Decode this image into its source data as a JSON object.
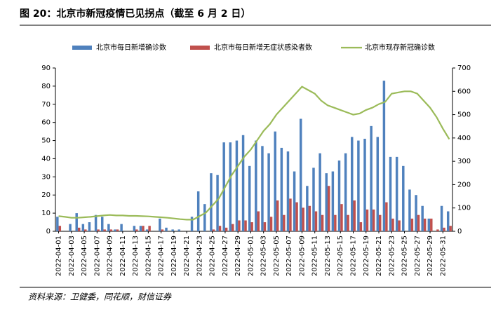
{
  "chart_data": {
    "type": "bar_line",
    "title": "图 20：北京市新冠疫情已见拐点（截至 6 月 2 日）",
    "source": "资料来源：卫健委，同花顺，财信证券",
    "categories": [
      "2022-04-01",
      null,
      "2022-04-03",
      null,
      "2022-04-05",
      null,
      "2022-04-07",
      null,
      "2022-04-09",
      null,
      "2022-04-11",
      null,
      "2022-04-13",
      null,
      "2022-04-15",
      null,
      "2022-04-17",
      null,
      "2022-04-19",
      null,
      "2022-04-21",
      null,
      "2022-04-23",
      null,
      "2022-04-25",
      null,
      "2022-04-27",
      null,
      "2022-04-29",
      null,
      "2022-05-01",
      null,
      "2022-05-03",
      null,
      "2022-05-05",
      null,
      "2022-05-07",
      null,
      "2022-05-09",
      null,
      "2022-05-11",
      null,
      "2022-05-13",
      null,
      "2022-05-15",
      null,
      "2022-05-17",
      null,
      "2022-05-19",
      null,
      "2022-05-21",
      null,
      "2022-05-23",
      null,
      "2022-05-25",
      null,
      "2022-05-27",
      null,
      "2022-05-29",
      null,
      "2022-05-31",
      null
    ],
    "series": [
      {
        "name": "北京市每日新增确诊数",
        "color": "#4f81bd",
        "kind": "bar",
        "values": [
          8,
          0,
          4,
          10,
          4,
          5,
          9,
          8,
          4,
          1,
          4,
          0,
          3,
          3,
          1,
          0,
          7,
          2,
          1,
          1,
          0,
          8,
          22,
          15,
          32,
          31,
          49,
          49,
          50,
          53,
          36,
          50,
          47,
          43,
          55,
          46,
          44,
          33,
          62,
          25,
          35,
          43,
          32,
          33,
          39,
          43,
          52,
          50,
          51,
          58,
          52,
          83,
          41,
          41,
          36,
          23,
          20,
          14,
          7,
          0,
          14,
          11
        ]
      },
      {
        "name": "北京市每日新增无症状感染者数",
        "color": "#c0504d",
        "kind": "bar",
        "values": [
          3,
          0,
          0,
          2,
          1,
          0,
          1,
          1,
          1,
          1,
          0,
          0,
          1,
          3,
          3,
          0,
          1,
          0,
          0,
          0,
          0,
          0,
          0,
          0,
          1,
          3,
          2,
          4,
          6,
          6,
          5,
          11,
          5,
          8,
          17,
          9,
          18,
          16,
          13,
          14,
          11,
          9,
          25,
          9,
          15,
          9,
          17,
          5,
          12,
          12,
          9,
          16,
          7,
          6,
          0,
          7,
          9,
          7,
          7,
          1,
          2,
          3
        ]
      },
      {
        "name": "北京市现存新冠确诊数",
        "color": "#9bbb59",
        "kind": "line",
        "axis": "y2",
        "values": [
          65,
          62,
          58,
          58,
          60,
          62,
          65,
          68,
          70,
          68,
          68,
          66,
          66,
          65,
          64,
          62,
          60,
          58,
          55,
          52,
          50,
          50,
          65,
          80,
          110,
          140,
          190,
          240,
          280,
          320,
          350,
          390,
          430,
          460,
          500,
          530,
          560,
          590,
          620,
          605,
          590,
          560,
          540,
          530,
          520,
          510,
          500,
          505,
          520,
          530,
          545,
          555,
          590,
          595,
          600,
          600,
          590,
          560,
          530,
          490,
          440,
          395
        ]
      }
    ],
    "ylim": [
      0,
      90
    ],
    "yticks": [
      0,
      10,
      20,
      30,
      40,
      50,
      60,
      70,
      80,
      90
    ],
    "y2lim": [
      0,
      700
    ],
    "y2ticks": [
      0,
      100,
      200,
      300,
      400,
      500,
      600,
      700
    ],
    "grid": false
  }
}
